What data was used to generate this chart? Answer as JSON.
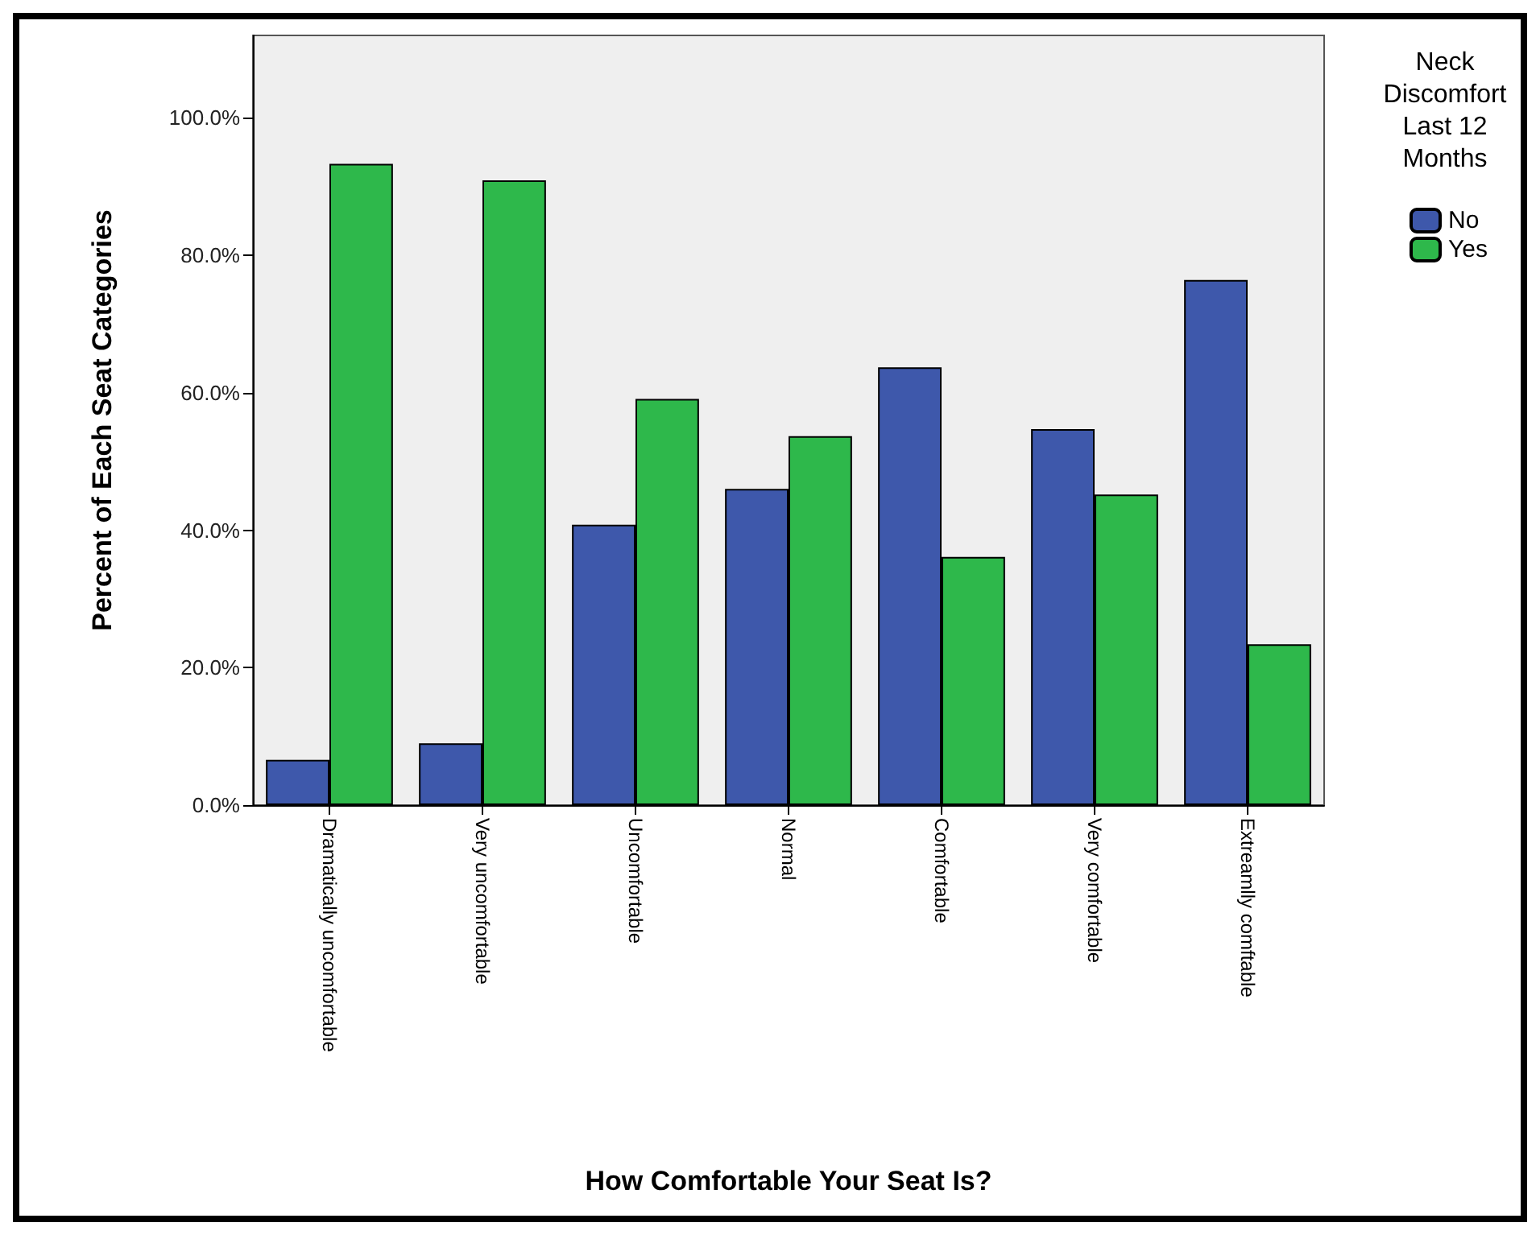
{
  "chart_data": {
    "type": "bar",
    "xlabel": "How Comfortable Your Seat Is?",
    "ylabel": "Percent of Each Seat Categories",
    "legend_title": "Neck Discomfort Last 12 Months",
    "categories": [
      "Dramatically uncomfortable",
      "Very uncomfortable",
      "Uncomfortable",
      "Normal",
      "Comfortable",
      "Very comfortable",
      "Extreamlly comftable"
    ],
    "series": [
      {
        "name": "No",
        "color": "#3e58ab",
        "values": [
          6.6,
          9.0,
          40.8,
          46.0,
          63.7,
          54.7,
          76.4
        ]
      },
      {
        "name": "Yes",
        "color": "#2eb84b",
        "values": [
          93.3,
          90.9,
          59.1,
          53.7,
          36.1,
          45.2,
          23.4
        ]
      }
    ],
    "ylim": [
      0,
      112
    ],
    "yticks": [
      {
        "value": 0,
        "label": "0.0%"
      },
      {
        "value": 20,
        "label": "20.0%"
      },
      {
        "value": 40,
        "label": "40.0%"
      },
      {
        "value": 60,
        "label": "60.0%"
      },
      {
        "value": 80,
        "label": "80.0%"
      },
      {
        "value": 100,
        "label": "100.0%"
      }
    ],
    "grid": false,
    "legend": "top right"
  }
}
